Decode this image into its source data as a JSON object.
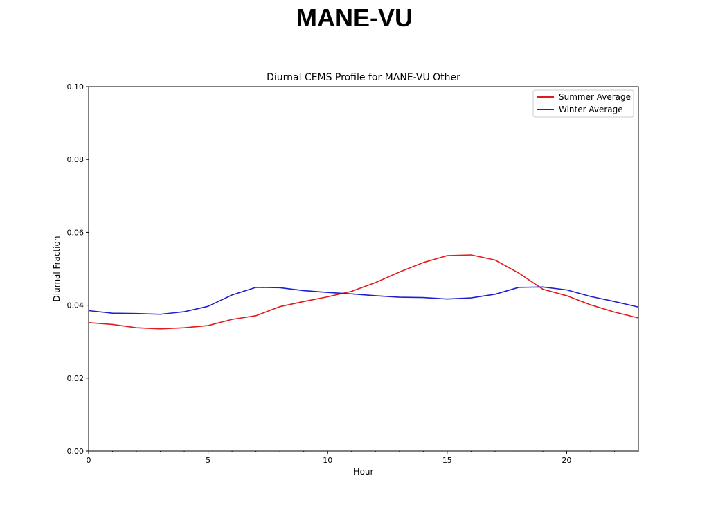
{
  "slide": {
    "title": "MANE-VU"
  },
  "chart_data": {
    "type": "line",
    "title": "Diurnal CEMS Profile for MANE-VU Other",
    "xlabel": "Hour",
    "ylabel": "Diurnal Fraction",
    "xlim": [
      0,
      23
    ],
    "ylim": [
      0.0,
      0.1
    ],
    "xticks": [
      0,
      5,
      10,
      15,
      20
    ],
    "xtick_labels": [
      "0",
      "5",
      "10",
      "15",
      "20"
    ],
    "yticks": [
      0.0,
      0.02,
      0.04,
      0.06,
      0.08,
      0.1
    ],
    "ytick_labels": [
      "0.00",
      "0.02",
      "0.04",
      "0.06",
      "0.08",
      "0.10"
    ],
    "grid": false,
    "legend_position": "top-right",
    "x": [
      0,
      1,
      2,
      3,
      4,
      5,
      6,
      7,
      8,
      9,
      10,
      11,
      12,
      13,
      14,
      15,
      16,
      17,
      18,
      19,
      20,
      21,
      22,
      23
    ],
    "series": [
      {
        "name": "Summer Average",
        "color": "#e31a1c",
        "values": [
          0.0352,
          0.0347,
          0.0338,
          0.0335,
          0.0338,
          0.0344,
          0.0361,
          0.0371,
          0.0396,
          0.041,
          0.0423,
          0.0438,
          0.0462,
          0.0491,
          0.0517,
          0.0536,
          0.0538,
          0.0524,
          0.0488,
          0.0444,
          0.0426,
          0.0401,
          0.0381,
          0.0365
        ]
      },
      {
        "name": "Winter Average",
        "color": "#1f1fcc",
        "values": [
          0.0385,
          0.0378,
          0.0377,
          0.0375,
          0.0382,
          0.0397,
          0.0428,
          0.0449,
          0.0448,
          0.044,
          0.0435,
          0.0431,
          0.0426,
          0.0422,
          0.0421,
          0.0417,
          0.042,
          0.043,
          0.0449,
          0.045,
          0.0442,
          0.0424,
          0.041,
          0.0395
        ]
      }
    ]
  }
}
